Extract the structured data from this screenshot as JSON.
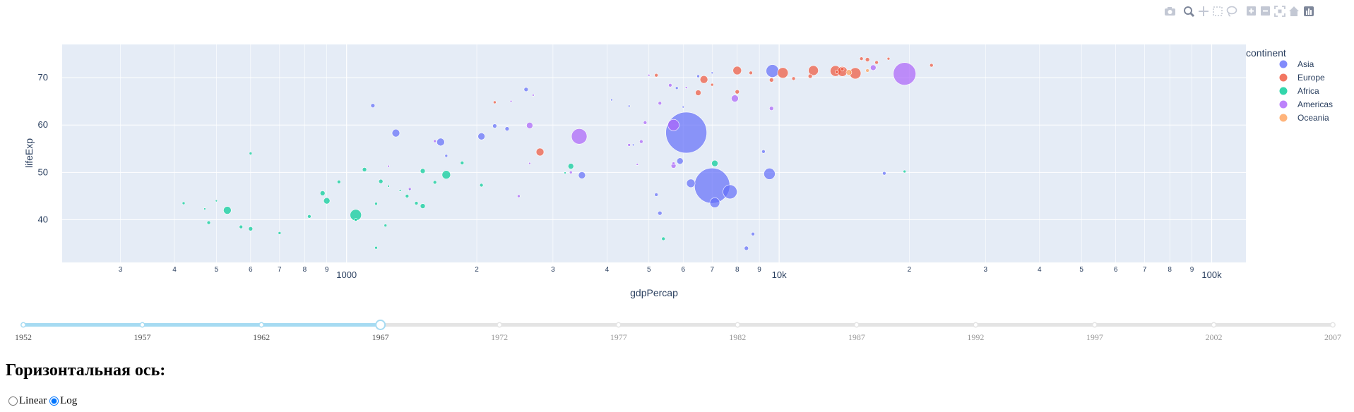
{
  "modebar": {
    "icons": [
      "camera-icon",
      "zoom-icon",
      "pan-icon",
      "box-select-icon",
      "lasso-icon",
      "zoom-in-icon",
      "zoom-out-icon",
      "autoscale-icon",
      "home-icon",
      "plotly-logo-icon"
    ]
  },
  "chart_data": {
    "type": "scatter",
    "subtype": "bubble",
    "xlabel": "gdpPercap",
    "ylabel": "lifeExp",
    "x_scale": "log",
    "xlim": [
      220,
      120000
    ],
    "ylim": [
      31,
      77
    ],
    "x_ticks_major": [
      {
        "value": 1000,
        "label": "1000"
      },
      {
        "value": 10000,
        "label": "10k"
      },
      {
        "value": 100000,
        "label": "100k"
      }
    ],
    "x_ticks_minor": [
      {
        "value": 300,
        "label": "3"
      },
      {
        "value": 400,
        "label": "4"
      },
      {
        "value": 500,
        "label": "5"
      },
      {
        "value": 600,
        "label": "6"
      },
      {
        "value": 700,
        "label": "7"
      },
      {
        "value": 800,
        "label": "8"
      },
      {
        "value": 900,
        "label": "9"
      },
      {
        "value": 2000,
        "label": "2"
      },
      {
        "value": 3000,
        "label": "3"
      },
      {
        "value": 4000,
        "label": "4"
      },
      {
        "value": 5000,
        "label": "5"
      },
      {
        "value": 6000,
        "label": "6"
      },
      {
        "value": 7000,
        "label": "7"
      },
      {
        "value": 8000,
        "label": "8"
      },
      {
        "value": 9000,
        "label": "9"
      },
      {
        "value": 20000,
        "label": "2"
      },
      {
        "value": 30000,
        "label": "3"
      },
      {
        "value": 40000,
        "label": "4"
      },
      {
        "value": 50000,
        "label": "5"
      },
      {
        "value": 60000,
        "label": "6"
      },
      {
        "value": 70000,
        "label": "7"
      },
      {
        "value": 80000,
        "label": "8"
      },
      {
        "value": 90000,
        "label": "9"
      }
    ],
    "y_ticks": [
      {
        "value": 40,
        "label": "40"
      },
      {
        "value": 50,
        "label": "50"
      },
      {
        "value": 60,
        "label": "60"
      },
      {
        "value": 70,
        "label": "70"
      }
    ],
    "grid": true,
    "legend": {
      "title": "continent",
      "placement": "top-right",
      "items": [
        {
          "label": "Asia",
          "color": "#636efa"
        },
        {
          "label": "Europe",
          "color": "#ef553b"
        },
        {
          "label": "Africa",
          "color": "#00cc96"
        },
        {
          "label": "Americas",
          "color": "#ab63fa"
        },
        {
          "label": "Oceania",
          "color": "#ffa15a"
        }
      ]
    },
    "series": [
      {
        "name": "Asia",
        "color": "#636efa",
        "points": [
          {
            "x": 6100,
            "y": 58.4,
            "size": 58
          },
          {
            "x": 7000,
            "y": 47.2,
            "size": 50
          },
          {
            "x": 7700,
            "y": 45.9,
            "size": 20
          },
          {
            "x": 7100,
            "y": 43.6,
            "size": 14
          },
          {
            "x": 6250,
            "y": 47.7,
            "size": 12
          },
          {
            "x": 9500,
            "y": 49.7,
            "size": 16
          },
          {
            "x": 1300,
            "y": 58.3,
            "size": 11
          },
          {
            "x": 1650,
            "y": 56.4,
            "size": 11
          },
          {
            "x": 9650,
            "y": 71.4,
            "size": 18
          },
          {
            "x": 2050,
            "y": 57.6,
            "size": 10
          },
          {
            "x": 5900,
            "y": 52.4,
            "size": 9
          },
          {
            "x": 9200,
            "y": 54.4,
            "size": 5
          },
          {
            "x": 2200,
            "y": 59.8,
            "size": 6
          },
          {
            "x": 2350,
            "y": 59.2,
            "size": 6
          },
          {
            "x": 2600,
            "y": 67.5,
            "size": 6
          },
          {
            "x": 3500,
            "y": 49.4,
            "size": 10
          },
          {
            "x": 1150,
            "y": 64.1,
            "size": 6
          },
          {
            "x": 5300,
            "y": 41.4,
            "size": 6
          },
          {
            "x": 8400,
            "y": 34.0,
            "size": 6
          },
          {
            "x": 8700,
            "y": 37.0,
            "size": 5
          },
          {
            "x": 5200,
            "y": 45.3,
            "size": 5
          },
          {
            "x": 17500,
            "y": 49.8,
            "size": 5
          },
          {
            "x": 6000,
            "y": 63.8,
            "size": 3
          },
          {
            "x": 7000,
            "y": 71.0,
            "size": 3
          },
          {
            "x": 6500,
            "y": 70.3,
            "size": 4
          },
          {
            "x": 5800,
            "y": 67.8,
            "size": 4
          },
          {
            "x": 4500,
            "y": 64.0,
            "size": 3
          },
          {
            "x": 4100,
            "y": 65.3,
            "size": 3
          },
          {
            "x": 1700,
            "y": 53.5,
            "size": 4
          },
          {
            "x": 4600,
            "y": 55.8,
            "size": 3
          }
        ]
      },
      {
        "name": "Europe",
        "color": "#ef553b",
        "points": [
          {
            "x": 10200,
            "y": 71.0,
            "size": 15
          },
          {
            "x": 13500,
            "y": 71.4,
            "size": 15
          },
          {
            "x": 14000,
            "y": 71.3,
            "size": 14
          },
          {
            "x": 15000,
            "y": 70.9,
            "size": 16
          },
          {
            "x": 12000,
            "y": 71.5,
            "size": 14
          },
          {
            "x": 8000,
            "y": 71.5,
            "size": 12
          },
          {
            "x": 6700,
            "y": 69.6,
            "size": 11
          },
          {
            "x": 2800,
            "y": 54.3,
            "size": 11
          },
          {
            "x": 6500,
            "y": 66.8,
            "size": 8
          },
          {
            "x": 8000,
            "y": 67.0,
            "size": 6
          },
          {
            "x": 10800,
            "y": 69.8,
            "size": 5
          },
          {
            "x": 11800,
            "y": 70.3,
            "size": 6
          },
          {
            "x": 16000,
            "y": 73.8,
            "size": 6
          },
          {
            "x": 15500,
            "y": 74.0,
            "size": 5
          },
          {
            "x": 16800,
            "y": 73.2,
            "size": 5
          },
          {
            "x": 22500,
            "y": 72.6,
            "size": 5
          },
          {
            "x": 9600,
            "y": 69.5,
            "size": 6
          },
          {
            "x": 8600,
            "y": 71.0,
            "size": 5
          },
          {
            "x": 5200,
            "y": 70.5,
            "size": 5
          },
          {
            "x": 7000,
            "y": 68.5,
            "size": 4
          },
          {
            "x": 2200,
            "y": 64.8,
            "size": 4
          },
          {
            "x": 17900,
            "y": 74.0,
            "size": 4
          },
          {
            "x": 13600,
            "y": 71.2,
            "size": 5
          },
          {
            "x": 14000,
            "y": 71.8,
            "size": 5
          }
        ]
      },
      {
        "name": "Africa",
        "color": "#00cc96",
        "points": [
          {
            "x": 1050,
            "y": 41.0,
            "size": 16
          },
          {
            "x": 1700,
            "y": 49.5,
            "size": 12
          },
          {
            "x": 530,
            "y": 42.0,
            "size": 11
          },
          {
            "x": 7100,
            "y": 51.9,
            "size": 9
          },
          {
            "x": 3300,
            "y": 51.3,
            "size": 8
          },
          {
            "x": 900,
            "y": 44.0,
            "size": 9
          },
          {
            "x": 880,
            "y": 45.6,
            "size": 7
          },
          {
            "x": 1500,
            "y": 42.9,
            "size": 7
          },
          {
            "x": 1100,
            "y": 50.6,
            "size": 6
          },
          {
            "x": 1500,
            "y": 50.3,
            "size": 7
          },
          {
            "x": 1600,
            "y": 47.9,
            "size": 5
          },
          {
            "x": 1200,
            "y": 48.1,
            "size": 6
          },
          {
            "x": 960,
            "y": 48.0,
            "size": 5
          },
          {
            "x": 820,
            "y": 40.7,
            "size": 5
          },
          {
            "x": 600,
            "y": 38.1,
            "size": 6
          },
          {
            "x": 570,
            "y": 38.5,
            "size": 5
          },
          {
            "x": 480,
            "y": 39.4,
            "size": 5
          },
          {
            "x": 1450,
            "y": 43.5,
            "size": 5
          },
          {
            "x": 1380,
            "y": 45.0,
            "size": 5
          },
          {
            "x": 1850,
            "y": 52.0,
            "size": 5
          },
          {
            "x": 2050,
            "y": 47.3,
            "size": 5
          },
          {
            "x": 420,
            "y": 43.5,
            "size": 4
          },
          {
            "x": 470,
            "y": 42.3,
            "size": 3
          },
          {
            "x": 500,
            "y": 44.0,
            "size": 3
          },
          {
            "x": 700,
            "y": 37.2,
            "size": 4
          },
          {
            "x": 5400,
            "y": 36.0,
            "size": 5
          },
          {
            "x": 1230,
            "y": 38.8,
            "size": 4
          },
          {
            "x": 1170,
            "y": 34.1,
            "size": 4
          },
          {
            "x": 1050,
            "y": 40.0,
            "size": 4
          },
          {
            "x": 1170,
            "y": 43.4,
            "size": 4
          },
          {
            "x": 1250,
            "y": 47.1,
            "size": 3
          },
          {
            "x": 600,
            "y": 54.0,
            "size": 4
          },
          {
            "x": 19500,
            "y": 50.2,
            "size": 4
          },
          {
            "x": 3200,
            "y": 49.9,
            "size": 3
          },
          {
            "x": 1400,
            "y": 46.3,
            "size": 3
          },
          {
            "x": 1330,
            "y": 46.2,
            "size": 3
          }
        ]
      },
      {
        "name": "Americas",
        "color": "#ab63fa",
        "points": [
          {
            "x": 19500,
            "y": 70.8,
            "size": 32
          },
          {
            "x": 3450,
            "y": 57.6,
            "size": 22
          },
          {
            "x": 5700,
            "y": 60.0,
            "size": 16
          },
          {
            "x": 7900,
            "y": 65.6,
            "size": 10
          },
          {
            "x": 2650,
            "y": 59.9,
            "size": 9
          },
          {
            "x": 16500,
            "y": 72.1,
            "size": 8
          },
          {
            "x": 5700,
            "y": 51.4,
            "size": 7
          },
          {
            "x": 9600,
            "y": 63.5,
            "size": 6
          },
          {
            "x": 5300,
            "y": 64.6,
            "size": 5
          },
          {
            "x": 4900,
            "y": 60.5,
            "size": 5
          },
          {
            "x": 5600,
            "y": 68.4,
            "size": 5
          },
          {
            "x": 4800,
            "y": 56.5,
            "size": 5
          },
          {
            "x": 3300,
            "y": 50.0,
            "size": 4
          },
          {
            "x": 2500,
            "y": 45.0,
            "size": 4
          },
          {
            "x": 1600,
            "y": 56.6,
            "size": 4
          },
          {
            "x": 1400,
            "y": 46.5,
            "size": 4
          },
          {
            "x": 5700,
            "y": 51.9,
            "size": 4
          },
          {
            "x": 4500,
            "y": 55.8,
            "size": 4
          },
          {
            "x": 5000,
            "y": 70.5,
            "size": 3
          },
          {
            "x": 6100,
            "y": 67.9,
            "size": 3
          },
          {
            "x": 2700,
            "y": 66.3,
            "size": 3
          },
          {
            "x": 2400,
            "y": 65.0,
            "size": 3
          },
          {
            "x": 4700,
            "y": 51.7,
            "size": 3
          },
          {
            "x": 1250,
            "y": 51.3,
            "size": 3
          },
          {
            "x": 2650,
            "y": 51.9,
            "size": 3
          }
        ]
      },
      {
        "name": "Oceania",
        "color": "#ffa15a",
        "points": [
          {
            "x": 14500,
            "y": 71.1,
            "size": 8
          },
          {
            "x": 16000,
            "y": 71.5,
            "size": 5
          }
        ]
      }
    ]
  },
  "slider": {
    "years": [
      "1952",
      "1957",
      "1962",
      "1967",
      "1972",
      "1977",
      "1982",
      "1987",
      "1992",
      "1997",
      "2002",
      "2007"
    ],
    "active_index": 3
  },
  "controls": {
    "title": "Горизонтальная ось:",
    "options": [
      {
        "label": "Linear",
        "value": "linear",
        "checked": false
      },
      {
        "label": "Log",
        "value": "log",
        "checked": true
      }
    ]
  }
}
